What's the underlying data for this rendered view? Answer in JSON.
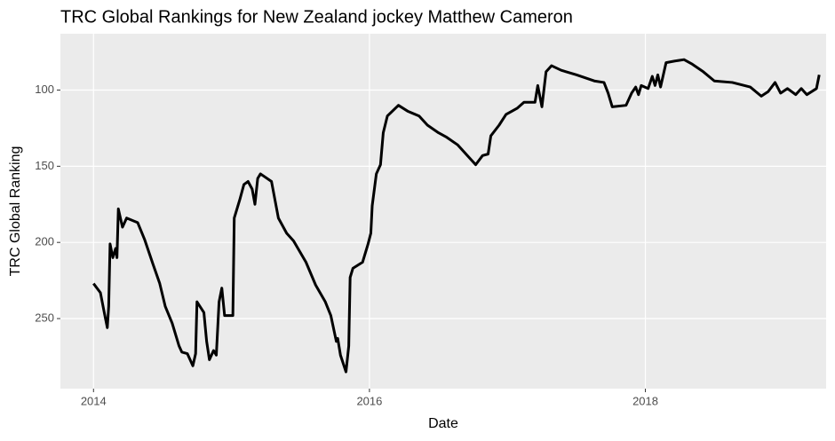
{
  "chart_data": {
    "type": "line",
    "title": "TRC Global Rankings for New Zealand jockey Matthew Cameron",
    "xlabel": "Date",
    "ylabel": "TRC Global Ranking",
    "x": [
      2014.0,
      2014.05,
      2014.08,
      2014.1,
      2014.11,
      2014.12,
      2014.14,
      2014.16,
      2014.17,
      2014.18,
      2014.21,
      2014.24,
      2014.32,
      2014.37,
      2014.43,
      2014.48,
      2014.52,
      2014.57,
      2014.62,
      2014.64,
      2014.68,
      2014.72,
      2014.74,
      2014.75,
      2014.8,
      2014.82,
      2014.84,
      2014.87,
      2014.89,
      2014.91,
      2014.93,
      2014.95,
      2015.01,
      2015.02,
      2015.06,
      2015.09,
      2015.12,
      2015.15,
      2015.17,
      2015.19,
      2015.21,
      2015.29,
      2015.34,
      2015.4,
      2015.45,
      2015.54,
      2015.61,
      2015.68,
      2015.72,
      2015.76,
      2015.77,
      2015.79,
      2015.83,
      2015.85,
      2015.86,
      2015.88,
      2015.95,
      2015.99,
      2016.01,
      2016.02,
      2016.05,
      2016.08,
      2016.1,
      2016.13,
      2016.21,
      2016.28,
      2016.36,
      2016.42,
      2016.5,
      2016.56,
      2016.64,
      2016.71,
      2016.77,
      2016.82,
      2016.86,
      2016.88,
      2016.94,
      2016.99,
      2017.07,
      2017.12,
      2017.2,
      2017.22,
      2017.25,
      2017.28,
      2017.32,
      2017.39,
      2017.5,
      2017.63,
      2017.7,
      2017.73,
      2017.76,
      2017.86,
      2017.9,
      2017.93,
      2017.95,
      2017.97,
      2018.02,
      2018.05,
      2018.07,
      2018.09,
      2018.11,
      2018.15,
      2018.21,
      2018.28,
      2018.34,
      2018.42,
      2018.5,
      2018.63,
      2018.76,
      2018.84,
      2018.89,
      2018.94,
      2018.98,
      2019.03,
      2019.09,
      2019.13,
      2019.17,
      2019.24,
      2019.26
    ],
    "series": [
      {
        "name": "TRC Global Ranking",
        "color": "#000000",
        "values": [
          227,
          233,
          247,
          256,
          242,
          201,
          210,
          204,
          210,
          178,
          190,
          184,
          187,
          198,
          214,
          227,
          242,
          253,
          268,
          272,
          273,
          281,
          273,
          239,
          246,
          265,
          277,
          271,
          274,
          239,
          230,
          248,
          248,
          184,
          172,
          162,
          160,
          165,
          175,
          158,
          155,
          160,
          184,
          194,
          199,
          213,
          228,
          239,
          248,
          265,
          263,
          274,
          285,
          268,
          223,
          217,
          213,
          201,
          194,
          176,
          155,
          149,
          128,
          117,
          110,
          114,
          117,
          123,
          128,
          131,
          136,
          143,
          149,
          143,
          142,
          130,
          123,
          116,
          112,
          108,
          108,
          97,
          111,
          88,
          84,
          87,
          90,
          94,
          95,
          102,
          111,
          110,
          102,
          98,
          103,
          97,
          99,
          91,
          97,
          90,
          98,
          82,
          81,
          80,
          83,
          88,
          94,
          95,
          98,
          104,
          101,
          95,
          102,
          99,
          103,
          99,
          103,
          99,
          90
        ]
      }
    ],
    "xlim": [
      2013.76,
      2019.31
    ],
    "xticks": [
      2014,
      2016,
      2018
    ],
    "ylim": [
      296,
      63
    ],
    "yticks": [
      100,
      150,
      200,
      250
    ],
    "grid": true
  }
}
